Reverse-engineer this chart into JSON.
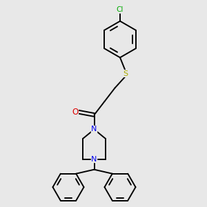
{
  "bg_color": "#e8e8e8",
  "atom_colors": {
    "C": "#000000",
    "N": "#0000ee",
    "O": "#dd0000",
    "S": "#aaaa00",
    "Cl": "#00aa00"
  },
  "line_color": "#000000",
  "line_width": 1.4,
  "figsize": [
    3.0,
    3.0
  ],
  "dpi": 100,
  "xlim": [
    0,
    10
  ],
  "ylim": [
    0,
    10
  ]
}
